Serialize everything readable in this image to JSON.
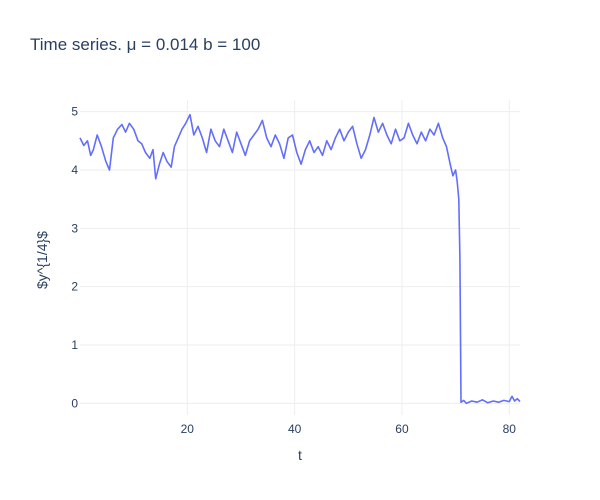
{
  "chart_data": {
    "type": "line",
    "title": "Time series. μ = 0.014 b = 100",
    "xlabel": "t",
    "ylabel": "$y^{1/4}$",
    "xlim": [
      0,
      82
    ],
    "ylim": [
      -0.2,
      5.2
    ],
    "x_ticks": [
      20,
      40,
      60,
      80
    ],
    "y_ticks": [
      0,
      1,
      2,
      3,
      4,
      5
    ],
    "grid": true,
    "line_color": "#636efa",
    "series": [
      {
        "x": [
          0,
          0.7,
          1.4,
          2.0,
          2.5,
          3.2,
          4.0,
          4.8,
          5.5,
          6.2,
          7.0,
          7.8,
          8.5,
          9.2,
          10.0,
          10.8,
          11.5,
          12.2,
          13.0,
          13.6,
          14.1,
          14.8,
          15.5,
          16.2,
          17.0,
          17.6,
          18.3,
          19.0,
          19.7,
          20.5,
          21.2,
          22.0,
          22.8,
          23.6,
          24.4,
          25.2,
          26.0,
          26.8,
          27.6,
          28.4,
          29.2,
          30.0,
          30.8,
          31.6,
          32.4,
          33.2,
          34.0,
          34.8,
          35.6,
          36.4,
          37.2,
          38.0,
          38.8,
          39.6,
          40.4,
          41.2,
          42.0,
          42.8,
          43.6,
          44.4,
          45.2,
          46.0,
          46.8,
          47.6,
          48.4,
          49.2,
          50.0,
          50.8,
          51.6,
          52.4,
          53.2,
          54.0,
          54.8,
          55.6,
          56.4,
          57.2,
          58.0,
          58.8,
          59.6,
          60.4,
          61.2,
          62.0,
          62.8,
          63.6,
          64.4,
          65.2,
          66.0,
          66.8,
          67.6,
          68.3,
          69.0,
          69.5,
          70.0,
          70.3,
          70.6,
          70.8,
          71.0,
          71.5,
          72.0,
          73.0,
          74.0,
          75.0,
          76.0,
          77.0,
          78.0,
          79.0,
          80.0,
          80.5,
          81.0,
          81.5,
          82.0
        ],
        "y": [
          4.55,
          4.42,
          4.5,
          4.25,
          4.35,
          4.6,
          4.4,
          4.15,
          4.0,
          4.55,
          4.7,
          4.78,
          4.65,
          4.8,
          4.7,
          4.5,
          4.45,
          4.3,
          4.2,
          4.35,
          3.85,
          4.1,
          4.3,
          4.15,
          4.05,
          4.4,
          4.55,
          4.7,
          4.8,
          4.95,
          4.6,
          4.75,
          4.55,
          4.3,
          4.7,
          4.5,
          4.4,
          4.7,
          4.5,
          4.3,
          4.65,
          4.45,
          4.25,
          4.5,
          4.6,
          4.7,
          4.85,
          4.55,
          4.4,
          4.6,
          4.45,
          4.2,
          4.55,
          4.6,
          4.3,
          4.1,
          4.35,
          4.5,
          4.3,
          4.4,
          4.25,
          4.5,
          4.35,
          4.55,
          4.7,
          4.5,
          4.65,
          4.75,
          4.45,
          4.2,
          4.35,
          4.6,
          4.9,
          4.65,
          4.8,
          4.6,
          4.45,
          4.7,
          4.5,
          4.55,
          4.8,
          4.6,
          4.45,
          4.65,
          4.5,
          4.7,
          4.6,
          4.8,
          4.55,
          4.4,
          4.1,
          3.9,
          4.0,
          3.8,
          3.5,
          2.5,
          0.02,
          0.05,
          0.0,
          0.04,
          0.02,
          0.06,
          0.01,
          0.04,
          0.02,
          0.05,
          0.03,
          0.12,
          0.04,
          0.08,
          0.03
        ]
      }
    ]
  }
}
